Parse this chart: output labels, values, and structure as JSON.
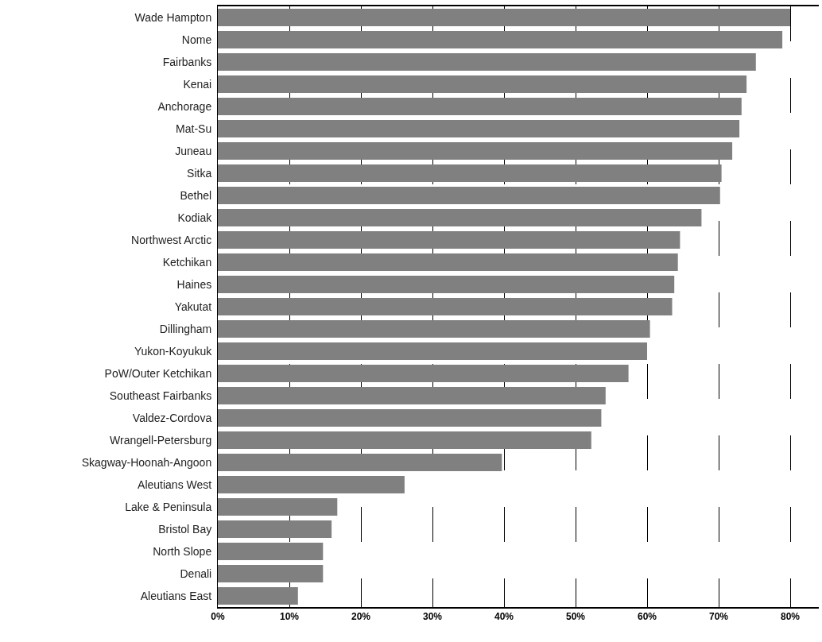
{
  "chart_data": {
    "type": "bar",
    "orientation": "horizontal",
    "categories": [
      "Wade Hampton",
      "Nome",
      "Fairbanks",
      "Kenai",
      "Anchorage",
      "Mat-Su",
      "Juneau",
      "Sitka",
      "Bethel",
      "Kodiak",
      "Northwest Arctic",
      "Ketchikan",
      "Haines",
      "Yakutat",
      "Dillingham",
      "Yukon-Koyukuk",
      "PoW/Outer Ketchikan",
      "Southeast Fairbanks",
      "Valdez-Cordova",
      "Wrangell-Petersburg",
      "Skagway-Hoonah-Angoon",
      "Aleutians West",
      "Lake & Peninsula",
      "Bristol Bay",
      "North Slope",
      "Denali",
      "Aleutians East"
    ],
    "values": [
      80.0,
      78.9,
      75.2,
      73.9,
      73.2,
      72.9,
      71.9,
      70.4,
      70.2,
      67.6,
      64.6,
      64.3,
      63.8,
      63.5,
      60.4,
      60.0,
      57.4,
      54.2,
      53.6,
      52.2,
      39.7,
      26.1,
      16.7,
      15.9,
      14.7,
      14.7,
      11.2
    ],
    "color": "#808080",
    "xlim": [
      0,
      84
    ],
    "xticks": [
      {
        "value": 0,
        "label": "0%"
      },
      {
        "value": 10,
        "label": "10%"
      },
      {
        "value": 20,
        "label": "20%"
      },
      {
        "value": 30,
        "label": "30%"
      },
      {
        "value": 40,
        "label": "40%"
      },
      {
        "value": 50,
        "label": "50%"
      },
      {
        "value": 60,
        "label": "60%"
      },
      {
        "value": 70,
        "label": "70%"
      },
      {
        "value": 80,
        "label": "80%"
      }
    ],
    "grid": "x"
  }
}
